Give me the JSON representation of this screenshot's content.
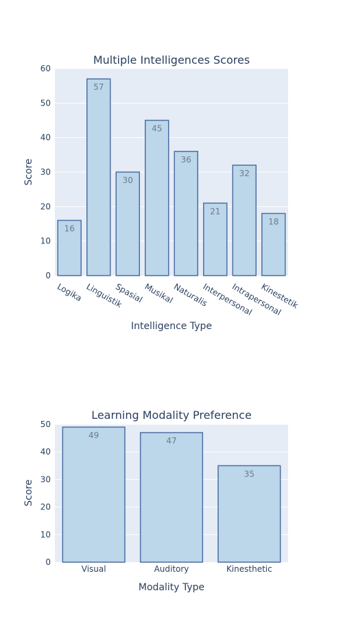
{
  "colors": {
    "plot_bg": "#e5ecf6",
    "grid": "#ffffff",
    "bar_fill": "#bcd6ea",
    "bar_stroke": "#4d6fa3",
    "text": "#2a3f5f",
    "label": "#6e7b8b"
  },
  "chart_data": [
    {
      "type": "bar",
      "title": "Multiple Intelligences Scores",
      "xlabel": "Intelligence Type",
      "ylabel": "Score",
      "categories": [
        "Logika",
        "Linguistik",
        "Spasial",
        "Musikal",
        "Naturalis",
        "Interpersonal",
        "Intrapersonal",
        "Kinestetik"
      ],
      "values": [
        16,
        57,
        30,
        45,
        36,
        21,
        32,
        18
      ],
      "ylim": [
        0,
        60
      ],
      "yticks": [
        0,
        10,
        20,
        30,
        40,
        50,
        60
      ],
      "grid": true,
      "tick_rotation": "rotated"
    },
    {
      "type": "bar",
      "title": "Learning Modality Preference",
      "xlabel": "Modality Type",
      "ylabel": "Score",
      "categories": [
        "Visual",
        "Auditory",
        "Kinesthetic"
      ],
      "values": [
        49,
        47,
        35
      ],
      "ylim": [
        0,
        50
      ],
      "yticks": [
        0,
        10,
        20,
        30,
        40,
        50
      ],
      "grid": true,
      "tick_rotation": "none"
    }
  ]
}
